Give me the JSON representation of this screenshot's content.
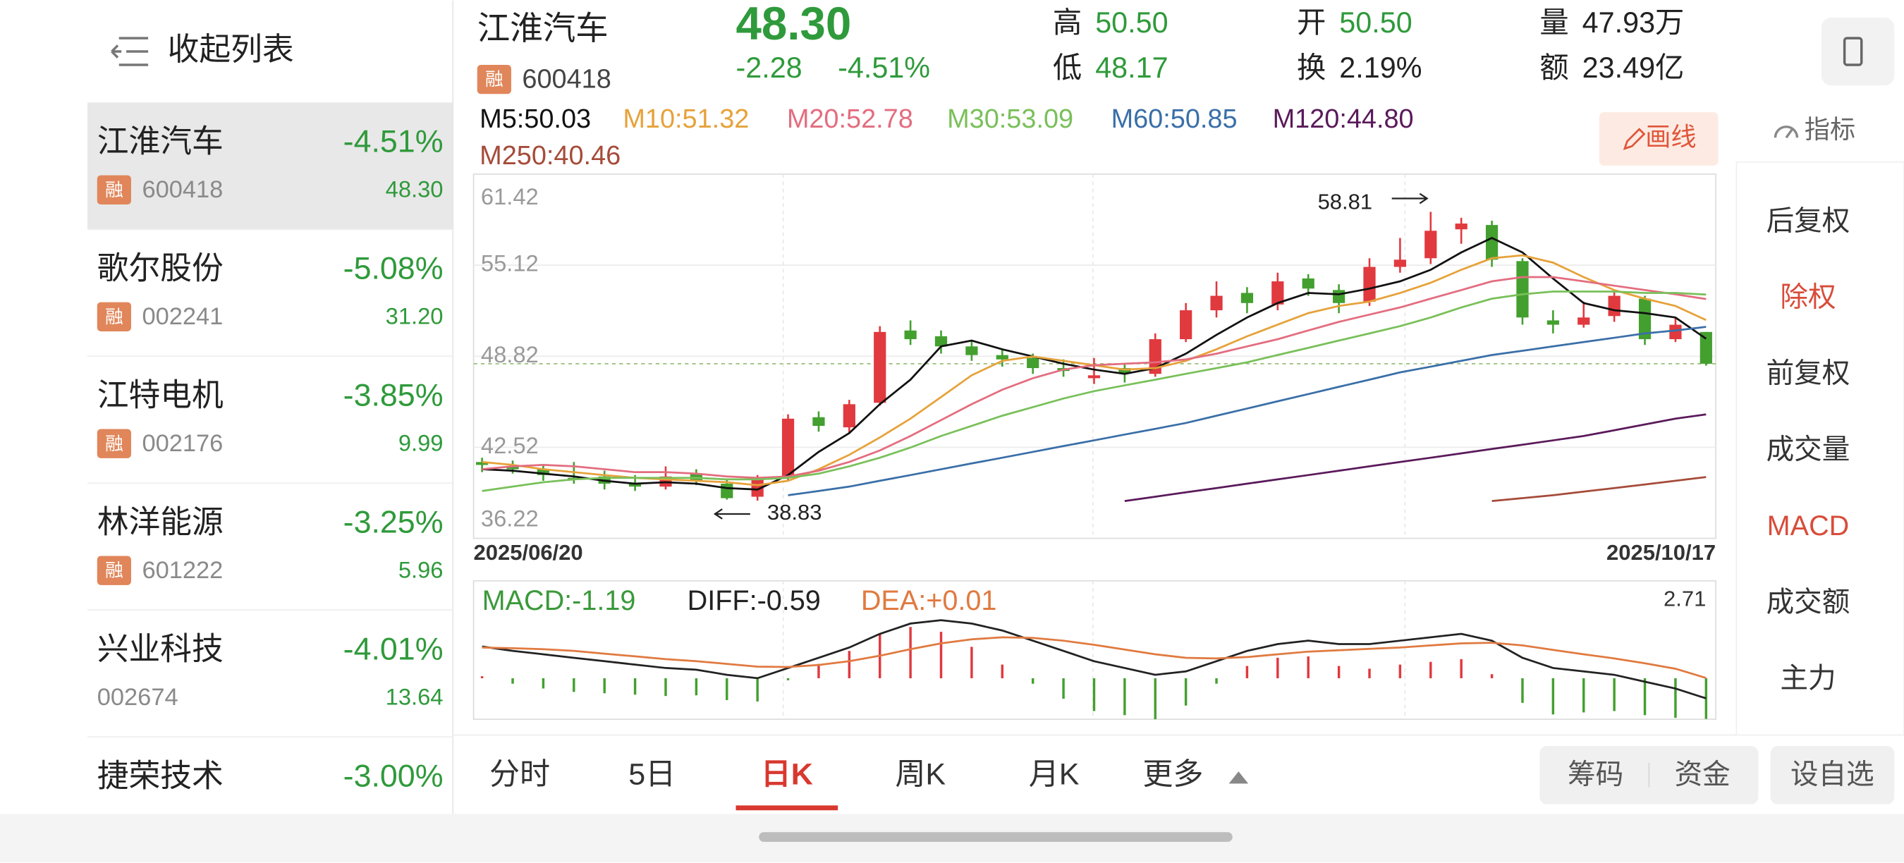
{
  "sidebar": {
    "title": "收起列表",
    "color": "#2f9a3b",
    "rows": [
      {
        "name": "江淮汽车",
        "pct": "-4.51%",
        "badge": "融",
        "code": "600418",
        "price": "48.30"
      },
      {
        "name": "歌尔股份",
        "pct": "-5.08%",
        "badge": "融",
        "code": "002241",
        "price": "31.20"
      },
      {
        "name": "江特电机",
        "pct": "-3.85%",
        "badge": "融",
        "code": "002176",
        "price": "9.99"
      },
      {
        "name": "林洋能源",
        "pct": "-3.25%",
        "badge": "融",
        "code": "601222",
        "price": "5.96"
      },
      {
        "name": "兴业科技",
        "pct": "-4.01%",
        "code": "002674",
        "price": "13.64"
      },
      {
        "name": "捷荣技术",
        "pct": "-3.00%"
      }
    ]
  },
  "header": {
    "name": "江淮汽车",
    "badge": "融",
    "code": "600418",
    "price": "48.30",
    "change": "-2.28",
    "pct": "-4.51%",
    "color": "#2f9a3b",
    "stats": [
      {
        "label": "高",
        "value": "50.50",
        "color": "#2f9a3b"
      },
      {
        "label": "低",
        "value": "48.17",
        "color": "#2f9a3b"
      },
      {
        "label": "开",
        "value": "50.50",
        "color": "#2f9a3b"
      },
      {
        "label": "换",
        "value": "2.19%",
        "color": "#222222"
      },
      {
        "label": "量",
        "value": "47.93万",
        "color": "#222222"
      },
      {
        "label": "额",
        "value": "23.49亿",
        "color": "#222222"
      }
    ]
  },
  "toolbar": {
    "draw": "画线",
    "indicator": "指标"
  },
  "side_menu": [
    {
      "label": "后复权",
      "color": "#333333"
    },
    {
      "label": "除权",
      "color": "#d84c3a"
    },
    {
      "label": "前复权",
      "color": "#333333"
    },
    {
      "label": "成交量",
      "color": "#333333"
    },
    {
      "label": "MACD",
      "color": "#d84c3a"
    },
    {
      "label": "成交额",
      "color": "#333333"
    },
    {
      "label": "主力",
      "color": "#333333"
    }
  ],
  "tabs": {
    "items": [
      "分时",
      "5日",
      "日K",
      "周K",
      "月K",
      "更多"
    ],
    "active": 2
  },
  "buttons": [
    "筹码",
    "资金",
    "设自选"
  ],
  "chart_data": {
    "type": "candlestick",
    "ylim": [
      36.22,
      61.42
    ],
    "yticks": [
      61.42,
      55.12,
      48.82,
      42.52,
      36.22
    ],
    "grid": true,
    "date_labels": [
      "2025/06/20",
      "2025/10/17"
    ],
    "up_color": "#e0393e",
    "down_color": "#43a02f",
    "candles": [
      [
        41.5,
        41.8,
        40.8,
        41.3
      ],
      [
        41.2,
        41.6,
        40.7,
        41.0
      ],
      [
        41.0,
        41.3,
        40.2,
        40.6
      ],
      [
        40.4,
        41.5,
        40.0,
        40.3
      ],
      [
        40.5,
        40.9,
        39.6,
        40.0
      ],
      [
        40.0,
        40.6,
        39.5,
        39.8
      ],
      [
        39.8,
        41.2,
        39.6,
        40.5
      ],
      [
        40.7,
        41.0,
        39.9,
        40.2
      ],
      [
        40.0,
        40.3,
        38.9,
        39.0
      ],
      [
        39.1,
        40.6,
        38.83,
        40.3
      ],
      [
        40.4,
        44.8,
        40.2,
        44.5
      ],
      [
        44.6,
        45.0,
        43.6,
        44.0
      ],
      [
        43.9,
        45.8,
        43.5,
        45.5
      ],
      [
        45.6,
        50.9,
        45.4,
        50.5
      ],
      [
        50.6,
        51.3,
        49.6,
        50.0
      ],
      [
        50.2,
        50.6,
        49.0,
        49.5
      ],
      [
        49.5,
        49.9,
        48.5,
        48.9
      ],
      [
        48.9,
        49.3,
        48.1,
        48.6
      ],
      [
        48.7,
        49.0,
        47.6,
        48.0
      ],
      [
        48.0,
        48.6,
        47.4,
        47.8
      ],
      [
        47.3,
        48.7,
        46.9,
        47.5
      ],
      [
        48.0,
        48.3,
        47.0,
        47.6
      ],
      [
        47.6,
        50.4,
        47.4,
        50.0
      ],
      [
        50.0,
        52.5,
        49.8,
        52.0
      ],
      [
        52.0,
        54.0,
        51.5,
        53.0
      ],
      [
        53.2,
        53.6,
        51.8,
        52.5
      ],
      [
        52.4,
        54.6,
        52.0,
        54.0
      ],
      [
        54.2,
        54.5,
        53.0,
        53.5
      ],
      [
        53.4,
        53.8,
        51.8,
        52.5
      ],
      [
        52.6,
        55.6,
        52.3,
        55.0
      ],
      [
        55.0,
        57.0,
        54.6,
        55.5
      ],
      [
        55.6,
        58.81,
        55.2,
        57.5
      ],
      [
        57.6,
        58.4,
        56.6,
        58.0
      ],
      [
        57.9,
        58.2,
        55.0,
        55.5
      ],
      [
        55.4,
        55.6,
        51.0,
        51.5
      ],
      [
        51.3,
        52.0,
        50.4,
        51.0
      ],
      [
        51.0,
        52.6,
        50.8,
        51.5
      ],
      [
        51.6,
        53.4,
        51.2,
        53.0
      ],
      [
        52.8,
        53.0,
        49.6,
        50.0
      ],
      [
        50.0,
        51.5,
        49.8,
        51.0
      ],
      [
        50.5,
        50.5,
        48.17,
        48.3
      ]
    ],
    "series": [
      {
        "label": "M5:50.03",
        "color": "#111111",
        "values": [
          41.0,
          40.9,
          40.7,
          40.5,
          40.2,
          40.0,
          40.1,
          40.0,
          39.7,
          39.6,
          40.6,
          42.2,
          43.5,
          45.5,
          47.2,
          49.5,
          49.9,
          49.3,
          48.8,
          48.3,
          47.9,
          47.6,
          48.0,
          49.0,
          50.3,
          51.5,
          52.5,
          53.2,
          53.1,
          53.5,
          54.0,
          54.8,
          56.0,
          57.0,
          56.0,
          54.2,
          52.5,
          52.0,
          51.8,
          51.5,
          50.03
        ]
      },
      {
        "label": "M10:51.32",
        "color": "#e6a23a",
        "values": [
          41.5,
          41.3,
          41.0,
          40.8,
          40.6,
          40.4,
          40.3,
          40.2,
          40.1,
          39.9,
          40.2,
          41.0,
          42.0,
          43.2,
          44.5,
          46.0,
          47.5,
          48.5,
          48.8,
          48.5,
          48.2,
          47.9,
          48.0,
          48.5,
          49.3,
          50.2,
          51.0,
          51.8,
          52.3,
          52.6,
          53.2,
          53.9,
          54.8,
          55.6,
          55.8,
          55.3,
          54.3,
          53.4,
          52.8,
          52.3,
          51.32
        ]
      },
      {
        "label": "M20:52.78",
        "color": "#e36d7f",
        "values": [
          41.0,
          41.2,
          41.3,
          41.2,
          41.0,
          40.8,
          40.8,
          40.7,
          40.5,
          40.4,
          40.5,
          40.9,
          41.5,
          42.3,
          43.3,
          44.4,
          45.5,
          46.5,
          47.3,
          47.9,
          48.2,
          48.3,
          48.4,
          48.6,
          49.0,
          49.5,
          50.0,
          50.6,
          51.2,
          51.7,
          52.2,
          52.8,
          53.4,
          54.0,
          54.3,
          54.3,
          54.0,
          53.7,
          53.4,
          53.1,
          52.78
        ]
      },
      {
        "label": "M30:53.09",
        "color": "#79c05a",
        "values": [
          39.5,
          39.8,
          40.1,
          40.3,
          40.4,
          40.4,
          40.4,
          40.4,
          40.3,
          40.3,
          40.4,
          40.7,
          41.2,
          41.8,
          42.5,
          43.3,
          44.0,
          44.7,
          45.3,
          45.9,
          46.4,
          46.8,
          47.2,
          47.6,
          48.0,
          48.4,
          48.9,
          49.4,
          49.9,
          50.4,
          50.9,
          51.5,
          52.2,
          52.8,
          53.1,
          53.3,
          53.3,
          53.3,
          53.2,
          53.2,
          53.09
        ]
      },
      {
        "label": "M60:50.85",
        "color": "#3a6fa8",
        "values": [
          null,
          null,
          null,
          null,
          null,
          null,
          null,
          null,
          null,
          null,
          39.2,
          39.5,
          39.8,
          40.2,
          40.6,
          41.0,
          41.4,
          41.8,
          42.2,
          42.6,
          43.0,
          43.4,
          43.8,
          44.2,
          44.7,
          45.2,
          45.7,
          46.2,
          46.7,
          47.2,
          47.7,
          48.1,
          48.5,
          48.9,
          49.2,
          49.5,
          49.8,
          50.1,
          50.4,
          50.6,
          50.85
        ]
      },
      {
        "label": "M120:44.80",
        "color": "#5a1a5a",
        "values": [
          null,
          null,
          null,
          null,
          null,
          null,
          null,
          null,
          null,
          null,
          null,
          null,
          null,
          null,
          null,
          null,
          null,
          null,
          null,
          null,
          null,
          38.8,
          39.1,
          39.4,
          39.7,
          40.0,
          40.3,
          40.6,
          40.9,
          41.2,
          41.5,
          41.8,
          42.1,
          42.4,
          42.7,
          43.0,
          43.3,
          43.7,
          44.1,
          44.5,
          44.8
        ]
      },
      {
        "label": "M250:40.46",
        "color": "#a64b3a",
        "values": [
          null,
          null,
          null,
          null,
          null,
          null,
          null,
          null,
          null,
          null,
          null,
          null,
          null,
          null,
          null,
          null,
          null,
          null,
          null,
          null,
          null,
          null,
          null,
          null,
          null,
          null,
          null,
          null,
          null,
          null,
          null,
          null,
          null,
          38.8,
          39.0,
          39.2,
          39.45,
          39.7,
          39.95,
          40.2,
          40.46
        ]
      }
    ],
    "annotations": [
      {
        "value": 58.81
      },
      {
        "value": 38.83
      }
    ],
    "macd": {
      "legend": [
        {
          "label": "MACD:-1.19",
          "color": "#3a9a3a"
        },
        {
          "label": "DIFF:-0.59",
          "color": "#222222"
        },
        {
          "label": "DEA:+0.01",
          "color": "#e07a40"
        }
      ],
      "y2lim": [
        -1.2,
        2.71
      ],
      "y2ticks": [
        2.71
      ],
      "bars": [
        0.06,
        -0.16,
        -0.3,
        -0.4,
        -0.44,
        -0.48,
        -0.52,
        -0.5,
        -0.64,
        -0.68,
        -0.06,
        0.42,
        0.8,
        1.28,
        1.5,
        1.36,
        0.92,
        0.4,
        -0.16,
        -0.6,
        -0.96,
        -1.08,
        -1.2,
        -0.8,
        -0.16,
        0.36,
        0.6,
        0.64,
        0.36,
        0.28,
        0.4,
        0.48,
        0.56,
        0.12,
        -0.72,
        -1.06,
        -1.0,
        -0.96,
        -1.08,
        -1.16,
        -1.19
      ],
      "diff": [
        0.93,
        0.8,
        0.7,
        0.6,
        0.5,
        0.4,
        0.3,
        0.25,
        0.1,
        0.0,
        0.3,
        0.6,
        0.9,
        1.3,
        1.6,
        1.7,
        1.6,
        1.4,
        1.1,
        0.8,
        0.5,
        0.3,
        0.1,
        0.2,
        0.5,
        0.8,
        1.0,
        1.1,
        1.0,
        1.0,
        1.1,
        1.2,
        1.3,
        1.1,
        0.6,
        0.3,
        0.2,
        0.1,
        -0.1,
        -0.3,
        -0.59
      ],
      "dea": [
        0.9,
        0.88,
        0.85,
        0.8,
        0.72,
        0.64,
        0.56,
        0.5,
        0.42,
        0.34,
        0.33,
        0.39,
        0.5,
        0.66,
        0.85,
        1.02,
        1.14,
        1.2,
        1.18,
        1.1,
        0.98,
        0.84,
        0.7,
        0.6,
        0.58,
        0.62,
        0.7,
        0.78,
        0.82,
        0.86,
        0.9,
        0.96,
        1.02,
        1.04,
        0.96,
        0.83,
        0.7,
        0.58,
        0.44,
        0.28,
        0.01
      ]
    }
  }
}
